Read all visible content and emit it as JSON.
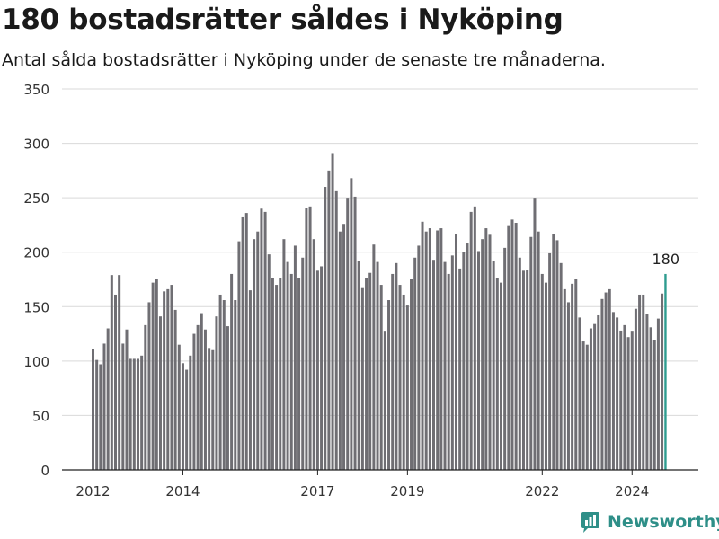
{
  "header": {
    "title": "180 bostadsrätter såldes i Nyköping",
    "subtitle": "Antal sålda bostadsrätter i Nyköping under de senaste tre månaderna."
  },
  "brand": {
    "name": "Newsworthy",
    "logo_icon": "bar-chart-logo-icon",
    "color": "#2e8f88"
  },
  "chart_data": {
    "type": "bar",
    "y_ticks": [
      "0",
      "50",
      "100",
      "150",
      "200",
      "250",
      "300",
      "350"
    ],
    "ylim": [
      0,
      350
    ],
    "grid": true,
    "x_ticks": [
      {
        "label": "2012",
        "index": 0
      },
      {
        "label": "2014",
        "index": 24
      },
      {
        "label": "2017",
        "index": 60
      },
      {
        "label": "2019",
        "index": 84
      },
      {
        "label": "2022",
        "index": 120
      },
      {
        "label": "2024",
        "index": 144
      }
    ],
    "start": "2012-01",
    "bar_color": "#6f6e73",
    "highlight_color": "#2e9c8f",
    "highlight_label": "180",
    "values": [
      111,
      101,
      97,
      116,
      130,
      179,
      161,
      179,
      116,
      129,
      102,
      102,
      102,
      105,
      133,
      154,
      172,
      175,
      141,
      164,
      166,
      170,
      147,
      115,
      98,
      92,
      105,
      125,
      133,
      144,
      129,
      112,
      110,
      141,
      161,
      156,
      132,
      180,
      156,
      210,
      232,
      236,
      165,
      212,
      219,
      240,
      237,
      198,
      176,
      170,
      176,
      212,
      191,
      180,
      206,
      176,
      195,
      241,
      242,
      212,
      183,
      187,
      260,
      275,
      291,
      256,
      219,
      226,
      250,
      268,
      251,
      192,
      167,
      176,
      181,
      207,
      191,
      170,
      127,
      156,
      180,
      190,
      170,
      161,
      151,
      175,
      195,
      206,
      228,
      219,
      222,
      193,
      220,
      222,
      191,
      180,
      197,
      217,
      185,
      200,
      208,
      237,
      242,
      201,
      212,
      222,
      216,
      192,
      176,
      172,
      204,
      224,
      230,
      227,
      195,
      183,
      184,
      214,
      250,
      219,
      180,
      172,
      199,
      217,
      211,
      190,
      166,
      154,
      171,
      175,
      140,
      118,
      115,
      130,
      134,
      142,
      157,
      163,
      166,
      145,
      140,
      128,
      133,
      122,
      127,
      148,
      161,
      161,
      143,
      131,
      119,
      139,
      162,
      180
    ]
  }
}
